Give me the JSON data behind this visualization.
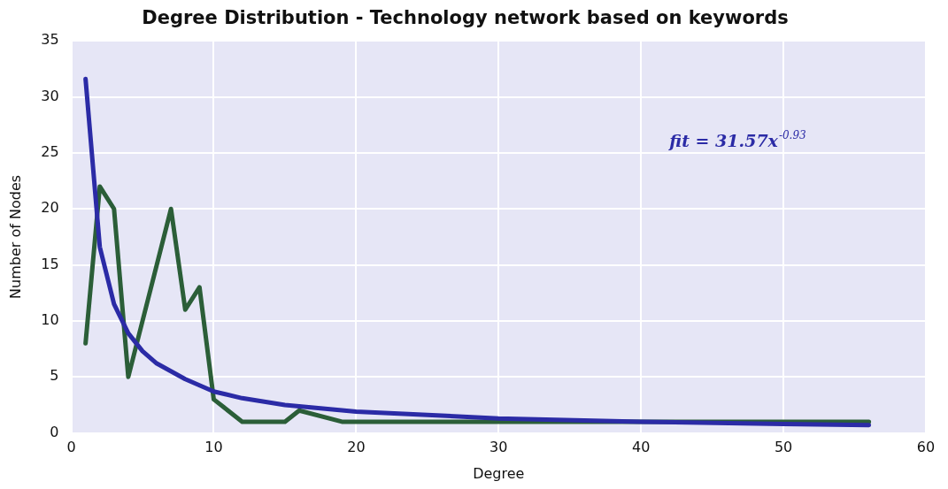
{
  "chart_data": {
    "type": "line",
    "title": "Degree Distribution - Technology network based on keywords",
    "xlabel": "Degree",
    "ylabel": "Number of Nodes",
    "series": [
      {
        "color": "#2b2ba6",
        "x": [
          1,
          2,
          3,
          4,
          5,
          6,
          8,
          10,
          12,
          15,
          20,
          25,
          30,
          40,
          50,
          56
        ],
        "values": [
          31.6,
          16.6,
          11.5,
          8.9,
          7.3,
          6.2,
          4.8,
          3.7,
          3.1,
          2.5,
          1.9,
          1.6,
          1.3,
          1.0,
          0.8,
          0.7
        ]
      },
      {
        "color": "#2b5e38",
        "x": [
          1,
          2,
          3,
          4,
          7,
          8,
          9,
          10,
          12,
          15,
          16,
          19,
          56
        ],
        "values": [
          8,
          22,
          20,
          5,
          20,
          11,
          13,
          3,
          1,
          1,
          2,
          1,
          1
        ]
      }
    ],
    "xlim": [
      0,
      60
    ],
    "xticks": [
      0,
      10,
      20,
      30,
      40,
      50,
      60
    ],
    "ylim": [
      0,
      35
    ],
    "yticks": [
      0,
      5,
      10,
      15,
      20,
      25,
      30,
      35
    ],
    "grid": true,
    "annotations": [
      "fit = 31.57x$^{-0.93}$"
    ]
  }
}
